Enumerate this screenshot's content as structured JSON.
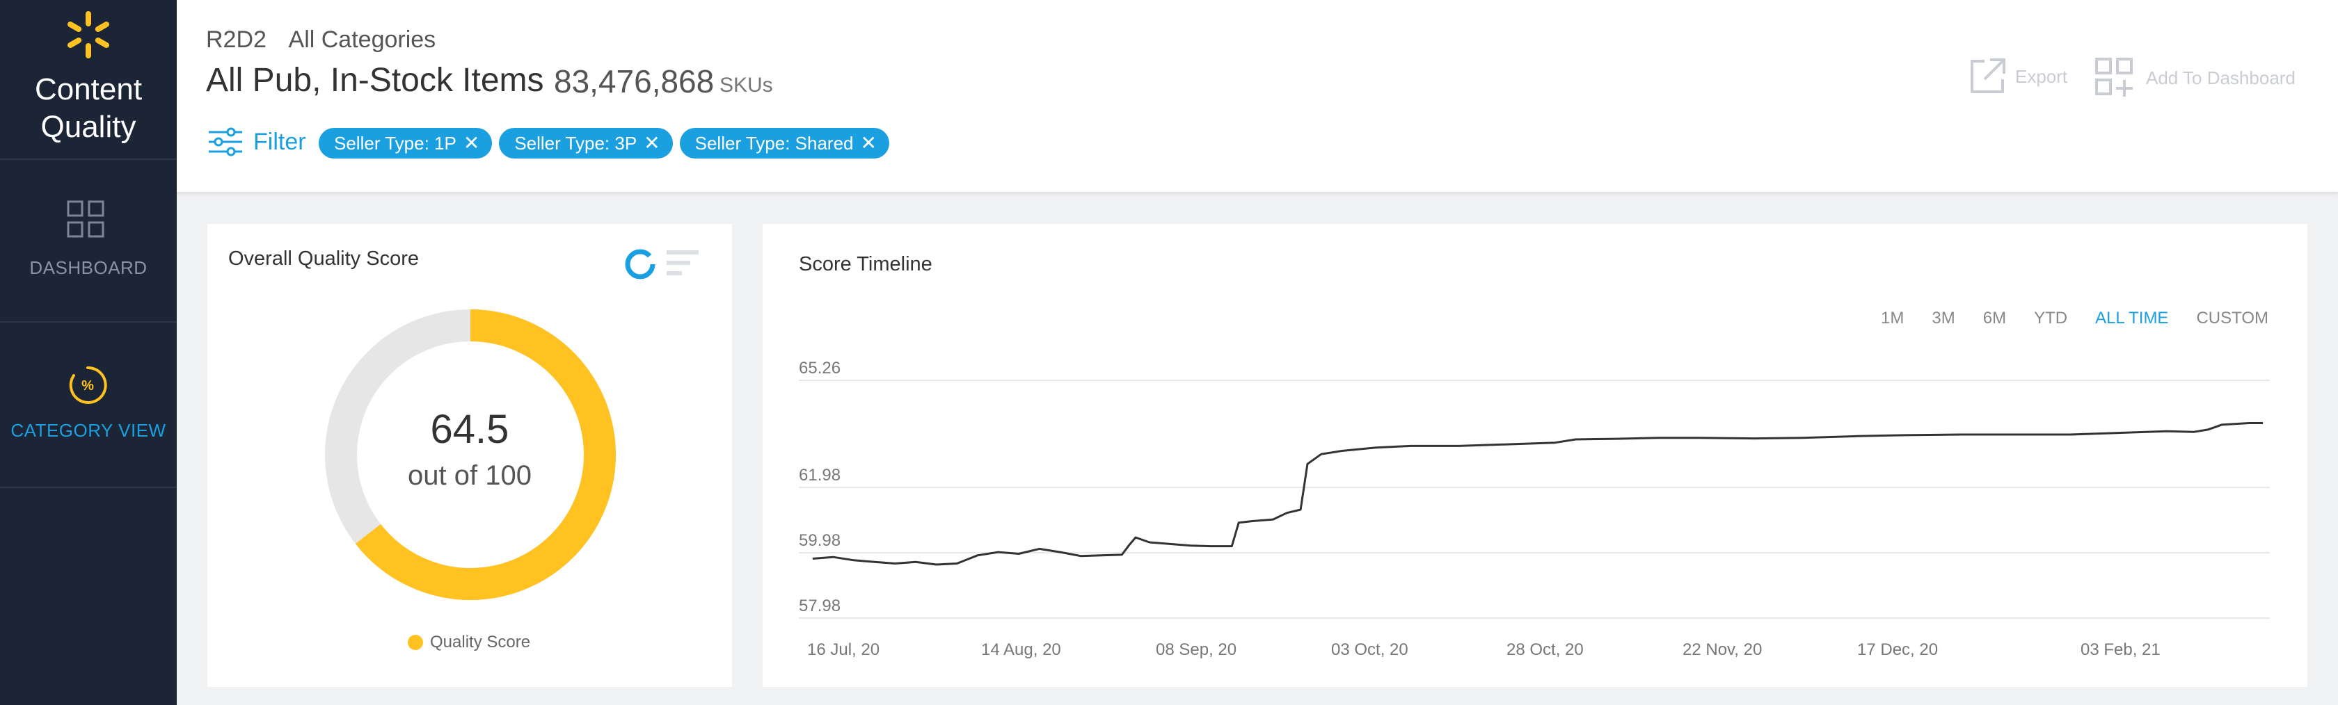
{
  "sidebar": {
    "app_title_line1": "Content",
    "app_title_line2": "Quality",
    "nav": [
      {
        "label": "DASHBOARD",
        "icon": "grid-icon",
        "active": false
      },
      {
        "label": "CATEGORY VIEW",
        "icon": "percent-gauge-icon",
        "active": true
      }
    ]
  },
  "header": {
    "breadcrumb": [
      "R2D2",
      "All Categories"
    ],
    "title": "All Pub, In-Stock Items",
    "sku_count": "83,476,868",
    "sku_label": "SKUs",
    "filter_label": "Filter",
    "chips": [
      "Seller Type: 1P",
      "Seller Type: 3P",
      "Seller Type: Shared"
    ],
    "export_label": "Export",
    "add_dashboard_label": "Add To Dashboard"
  },
  "quality": {
    "title": "Overall Quality Score",
    "score": "64.5",
    "out_of": "out of 100",
    "score_value": 64.5,
    "max": 100,
    "legend": "Quality Score",
    "colors": {
      "score": "#ffc220",
      "remainder": "#e6e6e6"
    }
  },
  "timeline": {
    "title": "Score Timeline",
    "ranges": [
      "1M",
      "3M",
      "6M",
      "YTD",
      "ALL TIME",
      "CUSTOM"
    ],
    "active_range": "ALL TIME"
  },
  "chart_data": {
    "type": "line",
    "title": "Score Timeline",
    "ytick_labels": [
      "65.26",
      "61.98",
      "59.98",
      "57.98"
    ],
    "yticks": [
      65.26,
      61.98,
      59.98,
      57.98
    ],
    "ylim": [
      57.98,
      65.26
    ],
    "xtick_labels": [
      "16 Jul, 20",
      "14 Aug, 20",
      "08 Sep, 20",
      "03 Oct, 20",
      "28 Oct, 20",
      "22 Nov, 20",
      "17 Dec, 20",
      "03 Feb, 21"
    ],
    "grid": true,
    "series": [
      {
        "color": "#333333",
        "points": [
          [
            "2020-07-16",
            59.8
          ],
          [
            "2020-07-19",
            59.85
          ],
          [
            "2020-07-22",
            59.75
          ],
          [
            "2020-07-25",
            59.7
          ],
          [
            "2020-07-28",
            59.65
          ],
          [
            "2020-07-31",
            59.7
          ],
          [
            "2020-08-03",
            59.62
          ],
          [
            "2020-08-06",
            59.65
          ],
          [
            "2020-08-09",
            59.9
          ],
          [
            "2020-08-12",
            60.0
          ],
          [
            "2020-08-15",
            59.95
          ],
          [
            "2020-08-18",
            60.1
          ],
          [
            "2020-08-21",
            60.0
          ],
          [
            "2020-08-24",
            59.88
          ],
          [
            "2020-08-27",
            59.9
          ],
          [
            "2020-08-30",
            59.92
          ],
          [
            "2020-08-31",
            60.2
          ],
          [
            "2020-09-01",
            60.45
          ],
          [
            "2020-09-03",
            60.3
          ],
          [
            "2020-09-06",
            60.25
          ],
          [
            "2020-09-09",
            60.2
          ],
          [
            "2020-09-12",
            60.18
          ],
          [
            "2020-09-15",
            60.18
          ],
          [
            "2020-09-16",
            60.9
          ],
          [
            "2020-09-18",
            60.95
          ],
          [
            "2020-09-21",
            61.0
          ],
          [
            "2020-09-23",
            61.2
          ],
          [
            "2020-09-25",
            61.3
          ],
          [
            "2020-09-26",
            62.7
          ],
          [
            "2020-09-28",
            63.0
          ],
          [
            "2020-10-01",
            63.1
          ],
          [
            "2020-10-06",
            63.2
          ],
          [
            "2020-10-11",
            63.25
          ],
          [
            "2020-10-18",
            63.25
          ],
          [
            "2020-10-25",
            63.3
          ],
          [
            "2020-11-01",
            63.35
          ],
          [
            "2020-11-04",
            63.45
          ],
          [
            "2020-11-10",
            63.47
          ],
          [
            "2020-11-16",
            63.5
          ],
          [
            "2020-11-22",
            63.5
          ],
          [
            "2020-11-30",
            63.48
          ],
          [
            "2020-12-07",
            63.5
          ],
          [
            "2020-12-15",
            63.55
          ],
          [
            "2020-12-22",
            63.58
          ],
          [
            "2020-12-30",
            63.6
          ],
          [
            "2021-01-07",
            63.6
          ],
          [
            "2021-01-15",
            63.6
          ],
          [
            "2021-01-22",
            63.65
          ],
          [
            "2021-01-29",
            63.7
          ],
          [
            "2021-02-02",
            63.68
          ],
          [
            "2021-02-04",
            63.75
          ],
          [
            "2021-02-06",
            63.9
          ],
          [
            "2021-02-10",
            63.95
          ],
          [
            "2021-02-12",
            63.95
          ]
        ]
      }
    ]
  }
}
